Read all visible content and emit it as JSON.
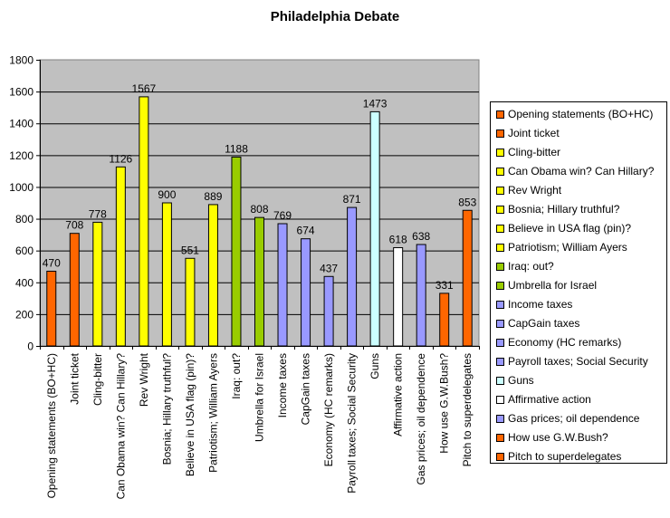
{
  "chart_data": {
    "type": "bar",
    "title": "Philadelphia Debate",
    "categories": [
      "Opening statements (BO+HC)",
      "Joint ticket",
      "Cling-bitter",
      "Can Obama win? Can Hillary?",
      "Rev Wright",
      "Bosnia; Hillary truthful?",
      "Believe in USA flag (pin)?",
      "Patriotism; William Ayers",
      "Iraq: out?",
      "Umbrella for Israel",
      "Income taxes",
      "CapGain taxes",
      "Economy (HC remarks)",
      "Payroll taxes; Social Security",
      "Guns",
      "Affirmative action",
      "Gas prices; oil dependence",
      "How use G.W.Bush?",
      "Pitch to superdelegates"
    ],
    "values": [
      470,
      708,
      778,
      1126,
      1567,
      900,
      551,
      889,
      1188,
      808,
      769,
      674,
      437,
      871,
      1473,
      618,
      638,
      331,
      853
    ],
    "value_labels": [
      "470",
      "708",
      "778",
      "1126",
      "1567",
      "900",
      "551",
      "889",
      "1188",
      "808",
      "769",
      "674",
      "437",
      "871",
      "1473",
      "618",
      "638",
      "331",
      "853"
    ],
    "colors": [
      "#ff6600",
      "#ff6600",
      "#ffff00",
      "#ffff00",
      "#ffff00",
      "#ffff00",
      "#ffff00",
      "#ffff00",
      "#99cc00",
      "#99cc00",
      "#9999ff",
      "#9999ff",
      "#9999ff",
      "#9999ff",
      "#ccffff",
      "#ffffff",
      "#9999ff",
      "#ff6600",
      "#ff6600"
    ],
    "ylim": [
      0,
      1800
    ],
    "yticks": [
      "0",
      "200",
      "400",
      "600",
      "800",
      "1000",
      "1200",
      "1400",
      "1600",
      "1800"
    ],
    "plot_background": "#c0c0c0",
    "grid": true,
    "legend_position": "right"
  }
}
